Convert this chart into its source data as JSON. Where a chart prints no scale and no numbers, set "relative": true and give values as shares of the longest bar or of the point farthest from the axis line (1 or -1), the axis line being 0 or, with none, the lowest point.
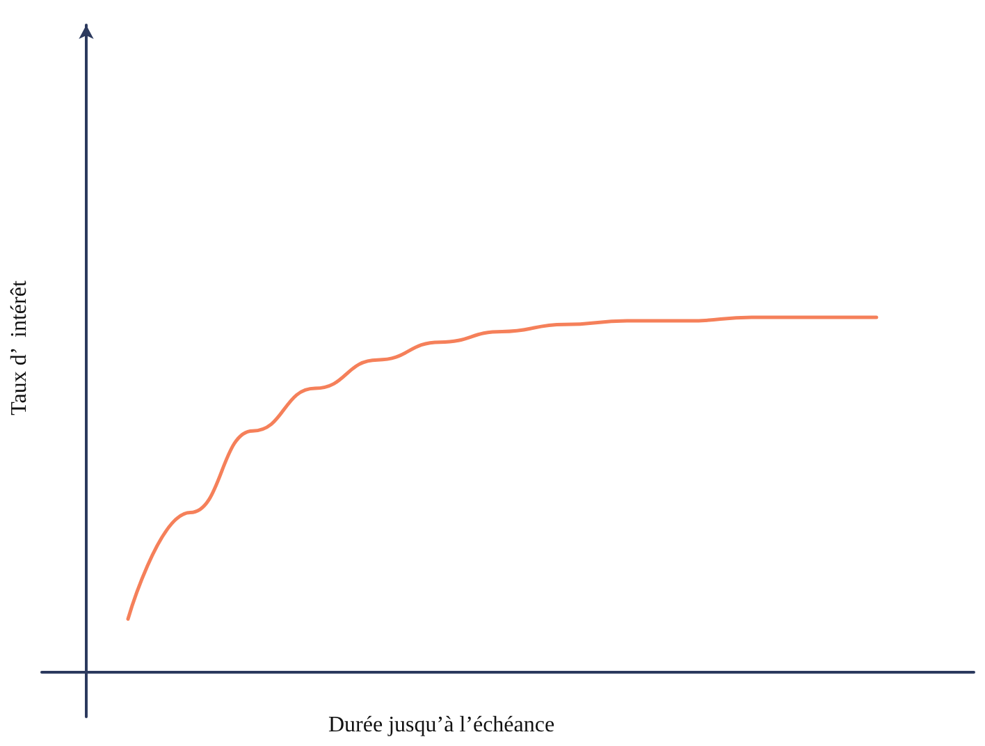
{
  "chart_data": {
    "type": "line",
    "relative": true,
    "xlabel": "Durée jusqu’à l’échéance",
    "ylabel": "Taux d’  intérêt",
    "categories": [
      null,
      null,
      null,
      null,
      null,
      null,
      null,
      null,
      null,
      null,
      null,
      null,
      null
    ],
    "series": [
      {
        "color": "#f5805a",
        "values": [
          0.15,
          0.45,
          0.68,
          0.8,
          0.88,
          0.93,
          0.96,
          0.98,
          0.99,
          0.99,
          1,
          1,
          1
        ]
      }
    ],
    "marker": "none",
    "tick_labels": false
  }
}
